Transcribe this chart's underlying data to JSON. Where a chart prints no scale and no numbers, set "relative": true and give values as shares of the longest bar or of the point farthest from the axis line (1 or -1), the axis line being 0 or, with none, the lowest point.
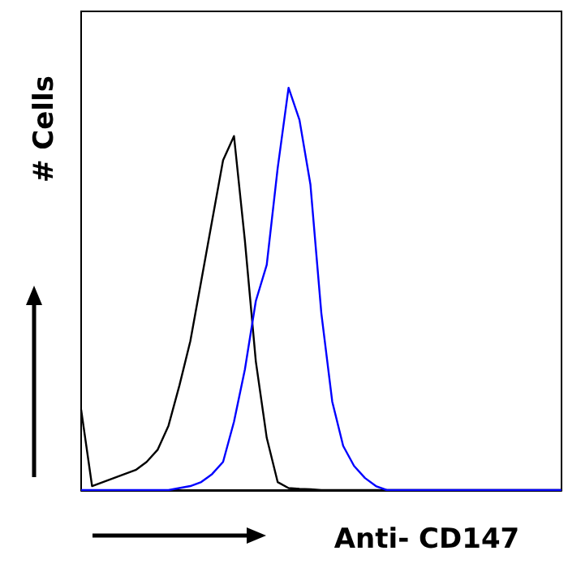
{
  "chart_data": {
    "type": "line",
    "relative": true,
    "xlabel": "Anti- CD147",
    "ylabel": "# Cells",
    "marker": "none",
    "grid": false,
    "categories": [
      null,
      null,
      null,
      null,
      null,
      null,
      null,
      null,
      null,
      null,
      null,
      null,
      null,
      null,
      null,
      null,
      null,
      null,
      null,
      null,
      null,
      null,
      null,
      null,
      null,
      null,
      null,
      null,
      null,
      null,
      null,
      null,
      null,
      null,
      null,
      null,
      null,
      null,
      null,
      null,
      null,
      null,
      null,
      null,
      null
    ],
    "series": [
      {
        "color": "#000000",
        "values": [
          0.2,
          0.01,
          0.02,
          0.03,
          0.04,
          0.05,
          0.07,
          0.1,
          0.16,
          0.26,
          0.37,
          0.52,
          0.67,
          0.82,
          0.88,
          0.62,
          0.32,
          0.13,
          0.02,
          0.005,
          0.003,
          0.002,
          0,
          0,
          0,
          0,
          0,
          0,
          0,
          0,
          0,
          0,
          0,
          0,
          0,
          0,
          0,
          0,
          0,
          0,
          0,
          0,
          0,
          0,
          0
        ]
      },
      {
        "color": "#0000ff",
        "values": [
          0,
          0,
          0,
          0,
          0,
          0,
          0,
          0,
          0,
          0.005,
          0.01,
          0.02,
          0.04,
          0.07,
          0.17,
          0.3,
          0.47,
          0.56,
          0.8,
          1,
          0.92,
          0.76,
          0.44,
          0.22,
          0.11,
          0.06,
          0.03,
          0.01,
          0,
          0,
          0,
          0,
          0,
          0,
          0,
          0,
          0,
          0,
          0,
          0,
          0,
          0,
          0,
          0,
          0
        ]
      }
    ]
  }
}
